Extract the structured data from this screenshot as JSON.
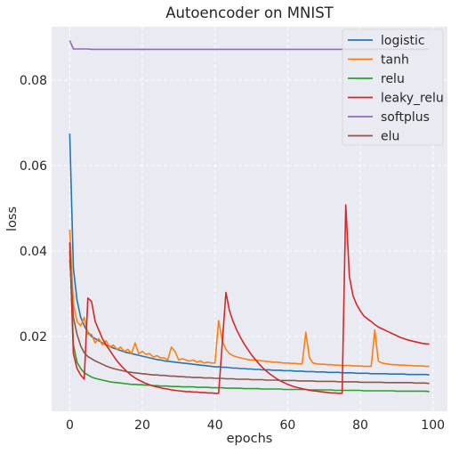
{
  "chart_data": {
    "type": "line",
    "title": "Autoencoder on MNIST",
    "xlabel": "epochs",
    "ylabel": "loss",
    "xlim": [
      -5,
      104
    ],
    "ylim": [
      0.0025,
      0.0925
    ],
    "x_ticks": [
      0,
      20,
      40,
      60,
      80,
      100
    ],
    "y_ticks": [
      0.02,
      0.04,
      0.06,
      0.08
    ],
    "x_tick_labels": [
      "0",
      "20",
      "40",
      "60",
      "80",
      "100"
    ],
    "y_tick_labels": [
      "0.02",
      "0.04",
      "0.06",
      "0.08"
    ],
    "grid": true,
    "legend_position": "top-right",
    "background": "#eaeaf2",
    "x": [
      0,
      1,
      2,
      3,
      4,
      5,
      6,
      7,
      8,
      9,
      10,
      11,
      12,
      13,
      14,
      15,
      16,
      17,
      18,
      19,
      20,
      21,
      22,
      23,
      24,
      25,
      26,
      27,
      28,
      29,
      30,
      31,
      32,
      33,
      34,
      35,
      36,
      37,
      38,
      39,
      40,
      41,
      42,
      43,
      44,
      45,
      46,
      47,
      48,
      49,
      50,
      51,
      52,
      53,
      54,
      55,
      56,
      57,
      58,
      59,
      60,
      61,
      62,
      63,
      64,
      65,
      66,
      67,
      68,
      69,
      70,
      71,
      72,
      73,
      74,
      75,
      76,
      77,
      78,
      79,
      80,
      81,
      82,
      83,
      84,
      85,
      86,
      87,
      88,
      89,
      90,
      91,
      92,
      93,
      94,
      95,
      96,
      97,
      98,
      99
    ],
    "series": [
      {
        "name": "logistic",
        "color": "#1f77b4",
        "values": [
          0.0675,
          0.036,
          0.0285,
          0.0245,
          0.0225,
          0.021,
          0.02,
          0.0195,
          0.019,
          0.0185,
          0.018,
          0.0177,
          0.0173,
          0.017,
          0.0167,
          0.0164,
          0.0162,
          0.016,
          0.0158,
          0.0156,
          0.0154,
          0.0152,
          0.015,
          0.0148,
          0.0146,
          0.0145,
          0.0143,
          0.0142,
          0.0141,
          0.014,
          0.0139,
          0.0138,
          0.0137,
          0.0136,
          0.0135,
          0.0134,
          0.0133,
          0.0132,
          0.0131,
          0.013,
          0.0129,
          0.0129,
          0.0128,
          0.0128,
          0.0127,
          0.0126,
          0.0126,
          0.0125,
          0.0125,
          0.0124,
          0.0124,
          0.0123,
          0.0123,
          0.0122,
          0.0122,
          0.0122,
          0.0121,
          0.0121,
          0.0121,
          0.012,
          0.012,
          0.012,
          0.0119,
          0.0119,
          0.0119,
          0.0118,
          0.0118,
          0.0118,
          0.0117,
          0.0117,
          0.0117,
          0.0116,
          0.0116,
          0.0116,
          0.0116,
          0.0115,
          0.0115,
          0.0115,
          0.0115,
          0.0114,
          0.0114,
          0.0114,
          0.0114,
          0.0113,
          0.0113,
          0.0113,
          0.0113,
          0.0113,
          0.0112,
          0.0112,
          0.0112,
          0.0112,
          0.0112,
          0.0111,
          0.0111,
          0.0111,
          0.0111,
          0.0111,
          0.0111,
          0.011
        ]
      },
      {
        "name": "tanh",
        "color": "#ff7f0e",
        "values": [
          0.045,
          0.0275,
          0.0235,
          0.0225,
          0.0245,
          0.0205,
          0.0205,
          0.0185,
          0.0195,
          0.018,
          0.019,
          0.0175,
          0.018,
          0.017,
          0.0175,
          0.0165,
          0.017,
          0.016,
          0.0185,
          0.016,
          0.0165,
          0.0158,
          0.016,
          0.0152,
          0.0155,
          0.015,
          0.015,
          0.0145,
          0.0175,
          0.0165,
          0.0145,
          0.0148,
          0.0145,
          0.0142,
          0.0145,
          0.014,
          0.0143,
          0.0138,
          0.014,
          0.0138,
          0.0138,
          0.0237,
          0.019,
          0.017,
          0.016,
          0.0155,
          0.0152,
          0.015,
          0.0148,
          0.0146,
          0.0145,
          0.0145,
          0.0144,
          0.0143,
          0.0142,
          0.0141,
          0.014,
          0.014,
          0.0139,
          0.0138,
          0.0138,
          0.0137,
          0.0137,
          0.0136,
          0.0136,
          0.021,
          0.015,
          0.0138,
          0.0136,
          0.0135,
          0.0135,
          0.0134,
          0.0134,
          0.0133,
          0.0133,
          0.0132,
          0.0132,
          0.0132,
          0.0131,
          0.0131,
          0.0131,
          0.013,
          0.013,
          0.013,
          0.0215,
          0.0142,
          0.0138,
          0.0136,
          0.0135,
          0.0134,
          0.0134,
          0.0133,
          0.0133,
          0.0132,
          0.0132,
          0.0131,
          0.0131,
          0.0131,
          0.013,
          0.013
        ]
      },
      {
        "name": "relu",
        "color": "#2ca02c",
        "values": [
          0.04,
          0.018,
          0.014,
          0.0125,
          0.0115,
          0.011,
          0.0105,
          0.0102,
          0.01,
          0.0098,
          0.0096,
          0.0094,
          0.0093,
          0.0092,
          0.0091,
          0.009,
          0.0089,
          0.0088,
          0.0088,
          0.0087,
          0.0087,
          0.0086,
          0.0086,
          0.0085,
          0.0085,
          0.0084,
          0.0084,
          0.0084,
          0.0083,
          0.0083,
          0.0083,
          0.0082,
          0.0082,
          0.0082,
          0.0082,
          0.0081,
          0.0081,
          0.0081,
          0.0081,
          0.008,
          0.008,
          0.008,
          0.008,
          0.0079,
          0.0079,
          0.0079,
          0.0079,
          0.0079,
          0.0078,
          0.0078,
          0.0078,
          0.0078,
          0.0078,
          0.0077,
          0.0077,
          0.0077,
          0.0077,
          0.0077,
          0.0077,
          0.0076,
          0.0076,
          0.0076,
          0.0076,
          0.0076,
          0.0076,
          0.0076,
          0.0075,
          0.0075,
          0.0075,
          0.0075,
          0.0075,
          0.0075,
          0.0075,
          0.0074,
          0.0074,
          0.0074,
          0.0074,
          0.0074,
          0.0074,
          0.0074,
          0.0074,
          0.0073,
          0.0073,
          0.0073,
          0.0073,
          0.0073,
          0.0073,
          0.0073,
          0.0073,
          0.0073,
          0.0072,
          0.0072,
          0.0072,
          0.0072,
          0.0072,
          0.0072,
          0.0072,
          0.0072,
          0.0072,
          0.0071
        ]
      },
      {
        "name": "leaky_relu",
        "color": "#d62728",
        "values": [
          0.042,
          0.016,
          0.0125,
          0.011,
          0.01,
          0.029,
          0.0282,
          0.0235,
          0.0215,
          0.0195,
          0.018,
          0.0168,
          0.0155,
          0.0143,
          0.0133,
          0.0124,
          0.0116,
          0.0109,
          0.0103,
          0.0098,
          0.0094,
          0.009,
          0.0087,
          0.0084,
          0.0082,
          0.008,
          0.0078,
          0.0077,
          0.0075,
          0.0074,
          0.0073,
          0.0072,
          0.0071,
          0.0071,
          0.007,
          0.007,
          0.0069,
          0.0069,
          0.0068,
          0.0068,
          0.0067,
          0.0067,
          0.0185,
          0.0303,
          0.026,
          0.0235,
          0.0215,
          0.0198,
          0.0183,
          0.017,
          0.0158,
          0.0147,
          0.0137,
          0.0128,
          0.012,
          0.0113,
          0.0107,
          0.0101,
          0.0096,
          0.0092,
          0.0088,
          0.0085,
          0.0082,
          0.008,
          0.0078,
          0.0076,
          0.0074,
          0.0073,
          0.0072,
          0.0071,
          0.007,
          0.0069,
          0.0068,
          0.0068,
          0.0067,
          0.0067,
          0.0508,
          0.034,
          0.0295,
          0.0275,
          0.026,
          0.0248,
          0.0241,
          0.0235,
          0.0228,
          0.0222,
          0.0218,
          0.0214,
          0.021,
          0.0206,
          0.0202,
          0.0198,
          0.0195,
          0.0192,
          0.019,
          0.0188,
          0.0186,
          0.0184,
          0.0183,
          0.0182
        ]
      },
      {
        "name": "softplus",
        "color": "#9467bd",
        "values": [
          0.0893,
          0.0873,
          0.0873,
          0.0873,
          0.0873,
          0.0873,
          0.0872,
          0.0872,
          0.0872,
          0.0872,
          0.0872,
          0.0872,
          0.0872,
          0.0872,
          0.0872,
          0.0872,
          0.0872,
          0.0872,
          0.0872,
          0.0872,
          0.0872,
          0.0872,
          0.0872,
          0.0872,
          0.0872,
          0.0872,
          0.0872,
          0.0872,
          0.0872,
          0.0872,
          0.0872,
          0.0872,
          0.0872,
          0.0872,
          0.0872,
          0.0872,
          0.0872,
          0.0872,
          0.0872,
          0.0872,
          0.0872,
          0.0872,
          0.0872,
          0.0872,
          0.0872,
          0.0872,
          0.0872,
          0.0872,
          0.0872,
          0.0872,
          0.0872,
          0.0872,
          0.0872,
          0.0872,
          0.0872,
          0.0872,
          0.0872,
          0.0872,
          0.0872,
          0.0872,
          0.0872,
          0.0872,
          0.0872,
          0.0872,
          0.0872,
          0.0872,
          0.0872,
          0.0872,
          0.0872,
          0.0872,
          0.0872,
          0.0872,
          0.0872,
          0.0872,
          0.0872,
          0.0872,
          0.0872,
          0.0872,
          0.0872,
          0.0872,
          0.0872,
          0.0872,
          0.0872,
          0.0872,
          0.0872,
          0.0872,
          0.0872,
          0.0872,
          0.0872,
          0.0872,
          0.0872,
          0.0872,
          0.0872,
          0.0872,
          0.0872,
          0.0872,
          0.0872,
          0.0872,
          0.0872,
          0.0872
        ]
      },
      {
        "name": "elu",
        "color": "#8c564b",
        "values": [
          0.038,
          0.0245,
          0.0205,
          0.0178,
          0.0162,
          0.0153,
          0.0148,
          0.0143,
          0.0139,
          0.0135,
          0.0131,
          0.0128,
          0.0125,
          0.0123,
          0.0121,
          0.0119,
          0.0117,
          0.0116,
          0.0115,
          0.0114,
          0.0113,
          0.0112,
          0.0111,
          0.011,
          0.011,
          0.0109,
          0.0109,
          0.0108,
          0.0107,
          0.0107,
          0.0106,
          0.0106,
          0.0105,
          0.0105,
          0.0104,
          0.0104,
          0.0104,
          0.0103,
          0.0103,
          0.0103,
          0.0102,
          0.0102,
          0.0102,
          0.0101,
          0.0101,
          0.0101,
          0.01,
          0.01,
          0.01,
          0.01,
          0.0099,
          0.0099,
          0.0099,
          0.0099,
          0.0098,
          0.0098,
          0.0098,
          0.0098,
          0.0097,
          0.0097,
          0.0097,
          0.0097,
          0.0097,
          0.0096,
          0.0096,
          0.0096,
          0.0096,
          0.0096,
          0.0095,
          0.0095,
          0.0095,
          0.0095,
          0.0095,
          0.0095,
          0.0094,
          0.0094,
          0.0094,
          0.0094,
          0.0094,
          0.0094,
          0.0093,
          0.0093,
          0.0093,
          0.0093,
          0.0093,
          0.0093,
          0.0093,
          0.0092,
          0.0092,
          0.0092,
          0.0092,
          0.0092,
          0.0092,
          0.0092,
          0.0092,
          0.0091,
          0.0091,
          0.0091,
          0.0091,
          0.009
        ]
      }
    ]
  }
}
